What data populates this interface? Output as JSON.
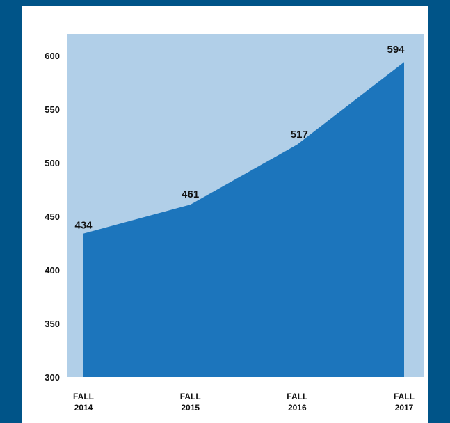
{
  "colors": {
    "frame_background": "#005488",
    "card_background": "#ffffff",
    "plot_background": "#b1cfe8",
    "area_fill": "#1c75bc",
    "text": "#111111"
  },
  "chart_data": {
    "type": "area",
    "categories": [
      [
        "FALL",
        "2014"
      ],
      [
        "FALL",
        "2015"
      ],
      [
        "FALL",
        "2016"
      ],
      [
        "FALL",
        "2017"
      ]
    ],
    "values": [
      434,
      461,
      517,
      594
    ],
    "data_labels": [
      "434",
      "461",
      "517",
      "594"
    ],
    "title": "",
    "xlabel": "",
    "ylabel": "",
    "ylim": [
      300,
      600
    ],
    "yticks": [
      300,
      350,
      400,
      450,
      500,
      550,
      600
    ],
    "grid": false,
    "legend": "none"
  }
}
